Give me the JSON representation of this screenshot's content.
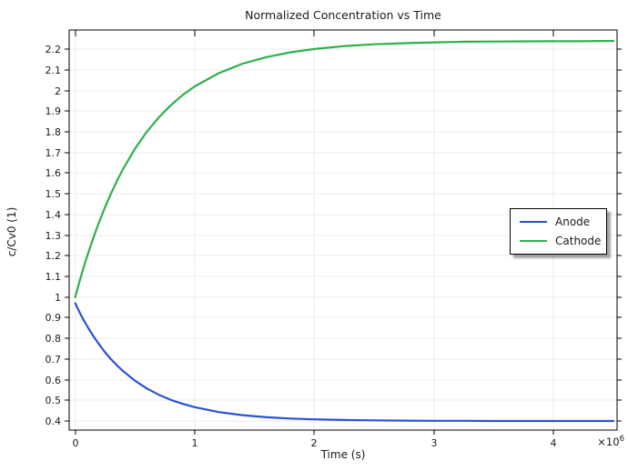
{
  "figure": {
    "title": "Normalized Concentration vs Time",
    "xlabel": "Time (s)",
    "ylabel": "c/Cv0 (1)",
    "x_multiplier": {
      "base": "×10",
      "exp": "6"
    }
  },
  "chart_data": {
    "type": "line",
    "title": "Normalized Concentration vs Time",
    "xlabel": "Time (s)",
    "ylabel": "c/Cv0 (1)",
    "x_unit_multiplier": 1000000,
    "xlim": [
      -0.05,
      4.53
    ],
    "ylim": [
      0.356,
      2.293
    ],
    "grid": true,
    "legend_position": "right-middle",
    "x_ticks": {
      "values": [
        0,
        1,
        2,
        3,
        4
      ],
      "labels": [
        "0",
        "1",
        "2",
        "3",
        "4"
      ]
    },
    "y_ticks": {
      "values": [
        0.4,
        0.5,
        0.6,
        0.7,
        0.8,
        0.9,
        1.0,
        1.1,
        1.2,
        1.3,
        1.4,
        1.5,
        1.6,
        1.7,
        1.8,
        1.9,
        2.0,
        2.1,
        2.2
      ],
      "labels": [
        "0.4",
        "0.5",
        "0.6",
        "0.7",
        "0.8",
        "0.9",
        "1",
        "1.1",
        "1.2",
        "1.3",
        "1.4",
        "1.5",
        "1.6",
        "1.7",
        "1.8",
        "1.9",
        "2",
        "2.1",
        "2.2"
      ]
    },
    "x": [
      0,
      0.025,
      0.05,
      0.075,
      0.1,
      0.125,
      0.15,
      0.175,
      0.2,
      0.25,
      0.3,
      0.35,
      0.4,
      0.5,
      0.6,
      0.7,
      0.8,
      0.9,
      1.0,
      1.2,
      1.4,
      1.6,
      1.8,
      2.0,
      2.25,
      2.5,
      2.75,
      3.0,
      3.25,
      3.5,
      3.75,
      4.0,
      4.25,
      4.5
    ],
    "series": [
      {
        "name": "Anode",
        "color": "#2a52d4",
        "values": [
          0.97,
          0.94,
          0.912,
          0.885,
          0.86,
          0.836,
          0.813,
          0.792,
          0.771,
          0.733,
          0.699,
          0.669,
          0.642,
          0.595,
          0.557,
          0.527,
          0.502,
          0.483,
          0.467,
          0.443,
          0.428,
          0.418,
          0.412,
          0.408,
          0.405,
          0.403,
          0.402,
          0.401,
          0.401,
          0.4,
          0.4,
          0.4,
          0.4,
          0.4
        ]
      },
      {
        "name": "Cathode",
        "color": "#2db04b",
        "values": [
          1.0,
          1.052,
          1.103,
          1.151,
          1.197,
          1.241,
          1.283,
          1.324,
          1.363,
          1.435,
          1.502,
          1.563,
          1.619,
          1.718,
          1.801,
          1.871,
          1.929,
          1.979,
          2.02,
          2.084,
          2.13,
          2.162,
          2.185,
          2.201,
          2.215,
          2.224,
          2.229,
          2.233,
          2.236,
          2.237,
          2.238,
          2.239,
          2.239,
          2.24
        ]
      }
    ],
    "colors": {
      "grid": "#ebebeb",
      "axis": "#000000",
      "background": "#ffffff",
      "text": "#1a1a1a"
    }
  }
}
